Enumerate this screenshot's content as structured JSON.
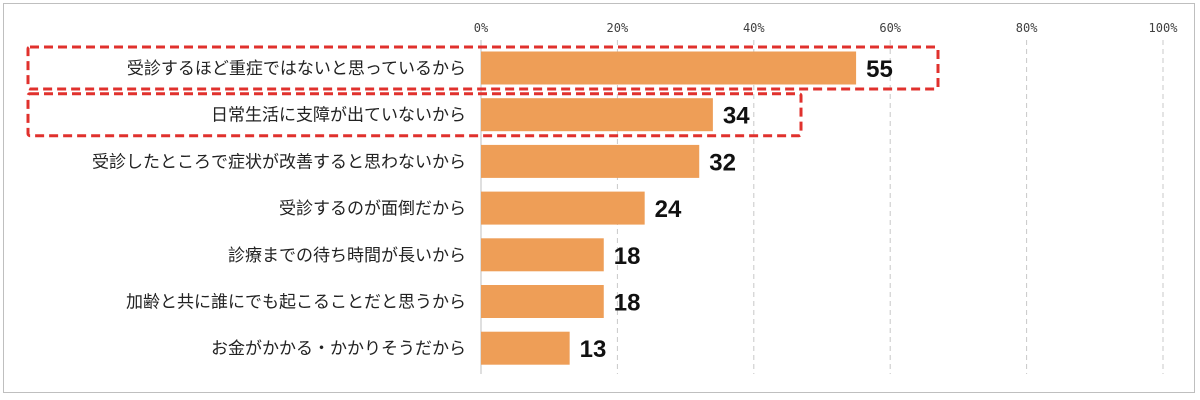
{
  "chart_data": {
    "type": "bar",
    "orientation": "horizontal",
    "categories": [
      "受診するほど重症ではないと思っているから",
      "日常生活に支障が出ていないから",
      "受診したところで症状が改善すると思わないから",
      "受診するのが面倒だから",
      "診療までの待ち時間が長いから",
      "加齢と共に誰にでも起こることだと思うから",
      "お金がかかる・かかりそうだから"
    ],
    "values": [
      55,
      34,
      32,
      24,
      18,
      18,
      13
    ],
    "data_labels": [
      "55",
      "34",
      "32",
      "24",
      "18",
      "18",
      "13"
    ],
    "xlim": [
      0,
      100
    ],
    "x_ticks": [
      0,
      20,
      40,
      60,
      80,
      100
    ],
    "x_tick_labels": [
      "0%",
      "20%",
      "40%",
      "60%",
      "80%",
      "100%"
    ],
    "x_axis_position": "top",
    "grid": "vertical dashed",
    "highlighted_categories": [
      0,
      1
    ],
    "colors": {
      "bar": "#EE9E57",
      "highlight": "#E0312D",
      "grid": "#C8C8C8",
      "axis": "#BFBFBF"
    }
  }
}
